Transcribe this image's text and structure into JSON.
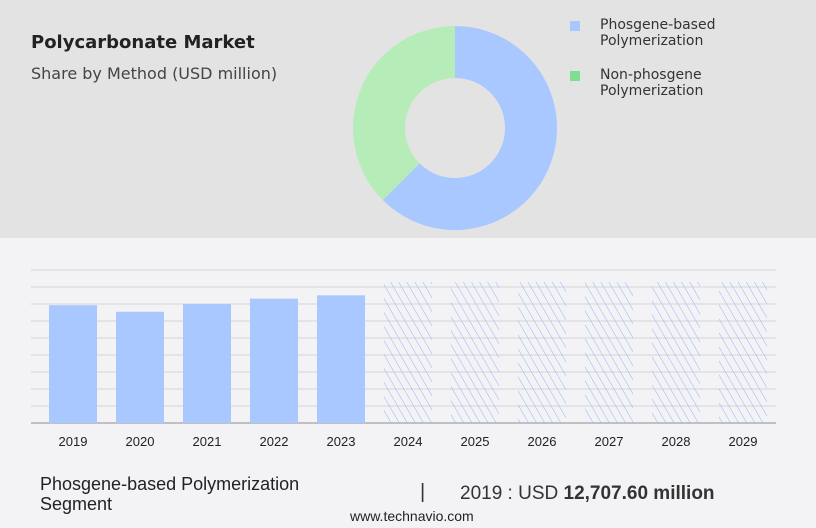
{
  "header": {
    "title": "Polycarbonate Market",
    "subtitle": "Share by Method (USD million)"
  },
  "chart_data": [
    {
      "type": "pie",
      "variant": "donut",
      "slices": [
        {
          "name": "Phosgene-based Polymerization",
          "share": 62.5,
          "color": "#a8c8ff"
        },
        {
          "name": "Non-phosgene Polymerization",
          "share": 37.5,
          "color": "#b5ecb8"
        }
      ],
      "legend": {
        "placement": "top-right",
        "entries": [
          {
            "label": "Phosgene-based Polymerization",
            "color": "#a8c8ff"
          },
          {
            "label": "Non-phosgene Polymerization",
            "color": "#7ddf8f"
          }
        ]
      }
    },
    {
      "type": "bar",
      "categories": [
        "2019",
        "2020",
        "2021",
        "2022",
        "2023",
        "2024",
        "2025",
        "2026",
        "2027",
        "2028",
        "2029"
      ],
      "values": [
        12707.6,
        12000,
        12830,
        13410,
        13770,
        null,
        null,
        null,
        null,
        null,
        null
      ],
      "forecast_from": "2024",
      "ylim": [
        0,
        16500
      ],
      "grid": true,
      "color": "#a8c8ff"
    }
  ],
  "footer": {
    "segment": "Phosgene-based Polymerization Segment",
    "separator": "|",
    "value_prefix": "2019 : USD ",
    "value": "12,707.60 million",
    "url": "www.technavio.com"
  }
}
